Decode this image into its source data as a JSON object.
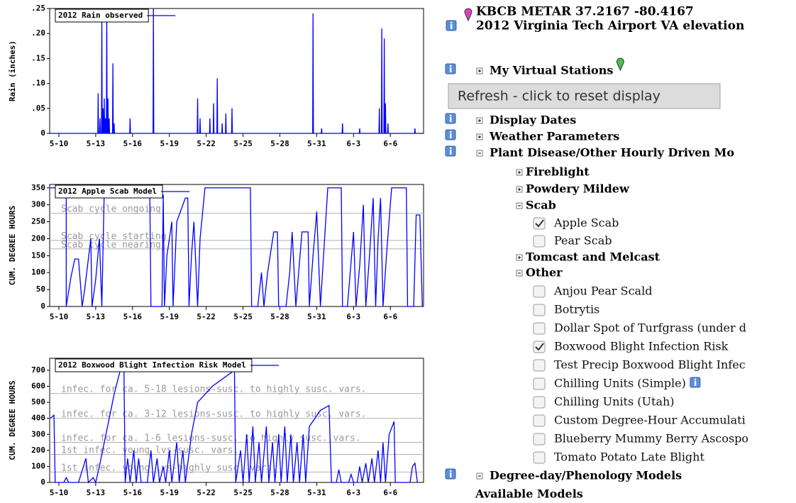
{
  "chart_data": [
    {
      "type": "line",
      "ylabel": "Rain (inches)",
      "legend": "upper left",
      "xlim": [
        9.25,
        39.7
      ],
      "xticks": [
        {
          "value": 10,
          "label": "5-10"
        },
        {
          "value": 13,
          "label": "5-13"
        },
        {
          "value": 16,
          "label": "5-16"
        },
        {
          "value": 19,
          "label": "5-19"
        },
        {
          "value": 22,
          "label": "5-22"
        },
        {
          "value": 25,
          "label": "5-25"
        },
        {
          "value": 28,
          "label": "5-28"
        },
        {
          "value": 31,
          "label": "5-31"
        },
        {
          "value": 34,
          "label": "6-3"
        },
        {
          "value": 37,
          "label": "6-6"
        }
      ],
      "ylim": [
        0,
        0.25
      ],
      "yticks": [
        0,
        {
          "value": 0.05,
          "label": ".05"
        },
        {
          "value": 0.1,
          "label": ".10"
        },
        {
          "value": 0.15,
          "label": ".15"
        },
        {
          "value": 0.2,
          "label": ".20"
        },
        {
          "value": 0.25,
          "label": ".25"
        }
      ],
      "x": [
        9.25,
        13.17,
        13.2,
        13.23,
        13.32,
        13.35,
        13.38,
        13.47,
        13.5,
        13.53,
        13.57,
        13.6,
        13.63,
        13.67,
        13.7,
        13.73,
        13.77,
        13.8,
        13.83,
        13.87,
        13.9,
        13.93,
        13.97,
        14.0,
        14.03,
        14.07,
        14.1,
        14.13,
        14.37,
        14.4,
        14.43,
        14.47,
        14.5,
        14.53,
        15.77,
        15.8,
        15.83,
        17.67,
        17.7,
        17.73,
        21.27,
        21.3,
        21.33,
        21.47,
        21.5,
        21.53,
        22.27,
        22.3,
        22.33,
        22.57,
        22.6,
        22.63,
        22.87,
        22.9,
        22.93,
        23.27,
        23.3,
        23.33,
        23.57,
        23.6,
        23.63,
        24.07,
        24.1,
        24.13,
        30.67,
        30.7,
        30.73,
        31.37,
        31.4,
        31.43,
        33.07,
        33.1,
        33.13,
        34.47,
        34.5,
        34.53,
        36.07,
        36.1,
        36.13,
        36.27,
        36.3,
        36.33,
        36.47,
        36.5,
        36.53,
        36.57,
        36.6,
        36.63,
        36.77,
        36.8,
        36.83,
        38.97,
        39.0,
        39.03,
        39.7
      ],
      "series": [
        {
          "name": "2012 Rain observed",
          "color": "#0000ff",
          "values": [
            0,
            0,
            0.08,
            0,
            0,
            0.03,
            0,
            0,
            0.24,
            0,
            0,
            0.05,
            0,
            0,
            0.07,
            0,
            0,
            0.03,
            0,
            0,
            0.25,
            0,
            0,
            0.07,
            0,
            0,
            0.03,
            0,
            0,
            0.14,
            0,
            0,
            0.02,
            0,
            0,
            0.03,
            0,
            0,
            0.25,
            0,
            0,
            0.07,
            0,
            0,
            0.03,
            0,
            0,
            0.03,
            0,
            0,
            0.06,
            0,
            0,
            0.11,
            0,
            0,
            0.02,
            0,
            0,
            0.04,
            0,
            0,
            0.05,
            0,
            0,
            0.24,
            0,
            0,
            0.01,
            0,
            0,
            0.02,
            0,
            0,
            0.01,
            0,
            0,
            0.05,
            0,
            0,
            0.21,
            0,
            0,
            0.19,
            0,
            0,
            0.06,
            0,
            0,
            0.02,
            0,
            0,
            0.01,
            0,
            0
          ]
        }
      ]
    },
    {
      "type": "line",
      "ylabel": "CUM. DEGREE HOURS",
      "legend": "upper left",
      "xlim": [
        9.25,
        39.7
      ],
      "xticks": [
        {
          "value": 10,
          "label": "5-10"
        },
        {
          "value": 13,
          "label": "5-13"
        },
        {
          "value": 16,
          "label": "5-16"
        },
        {
          "value": 19,
          "label": "5-19"
        },
        {
          "value": 22,
          "label": "5-22"
        },
        {
          "value": 25,
          "label": "5-25"
        },
        {
          "value": 28,
          "label": "5-28"
        },
        {
          "value": 31,
          "label": "5-31"
        },
        {
          "value": 34,
          "label": "6-3"
        },
        {
          "value": 37,
          "label": "6-6"
        }
      ],
      "ylim": [
        0,
        360
      ],
      "yticks": [
        0,
        50,
        100,
        150,
        200,
        250,
        300,
        350
      ],
      "annotations": [
        {
          "text": "Scab cycle ongoing",
          "value": 275
        },
        {
          "text": "Scab cycle starting",
          "value": 195
        },
        {
          "text": "Scab cycle nearing",
          "value": 170
        }
      ],
      "x": [
        9.3,
        10.6,
        10.6,
        11.0,
        11.3,
        11.6,
        11.9,
        12.1,
        12.6,
        12.7,
        13.0,
        13.3,
        13.5,
        13.7,
        17.4,
        17.5,
        18.4,
        18.5,
        18.6,
        18.8,
        19.2,
        19.3,
        19.6,
        20.3,
        20.5,
        20.6,
        20.8,
        21.0,
        21.3,
        21.5,
        21.9,
        25.6,
        25.7,
        26.2,
        26.5,
        26.7,
        27.0,
        27.5,
        27.8,
        27.9,
        28.5,
        28.8,
        29.0,
        29.3,
        29.8,
        30.3,
        30.4,
        30.7,
        31.0,
        31.3,
        31.9,
        33.0,
        33.1,
        33.5,
        34.0,
        34.2,
        34.5,
        34.8,
        35.0,
        35.3,
        35.6,
        35.8,
        36.0,
        36.2,
        36.4,
        36.7,
        37.1,
        38.3,
        38.4,
        38.9,
        39.1,
        39.4,
        39.6
      ],
      "series": [
        {
          "name": "2012 Apple Scab Model",
          "color": "#0000ff",
          "values": [
            350,
            350,
            0,
            90,
            140,
            140,
            0,
            50,
            200,
            0,
            80,
            200,
            0,
            350,
            350,
            0,
            0,
            330,
            0,
            150,
            250,
            0,
            250,
            320,
            320,
            0,
            150,
            250,
            0,
            200,
            350,
            350,
            0,
            0,
            100,
            0,
            100,
            220,
            220,
            0,
            0,
            100,
            220,
            0,
            220,
            220,
            0,
            150,
            280,
            0,
            350,
            350,
            0,
            0,
            220,
            0,
            120,
            300,
            0,
            150,
            320,
            0,
            200,
            320,
            0,
            160,
            350,
            350,
            0,
            0,
            270,
            270,
            0
          ]
        }
      ]
    },
    {
      "type": "line",
      "ylabel": "CUM. DEGREE HOURS",
      "legend": "upper left",
      "xlim": [
        9.25,
        39.7
      ],
      "xticks": [
        {
          "value": 10,
          "label": "5-10"
        },
        {
          "value": 13,
          "label": "5-13"
        },
        {
          "value": 16,
          "label": "5-16"
        },
        {
          "value": 19,
          "label": "5-19"
        },
        {
          "value": 22,
          "label": "5-22"
        },
        {
          "value": 25,
          "label": "5-25"
        },
        {
          "value": 28,
          "label": "5-28"
        },
        {
          "value": 31,
          "label": "5-31"
        },
        {
          "value": 34,
          "label": "6-3"
        },
        {
          "value": 37,
          "label": "6-6"
        }
      ],
      "ylim": [
        0,
        775
      ],
      "yticks": [
        0,
        100,
        200,
        300,
        400,
        500,
        600,
        700
      ],
      "annotations": [
        {
          "text": "infec. for ca. 5-18 lesions-susc. to highly susc. vars.",
          "value": 555
        },
        {
          "text": "infec. for ca. 3-12 lesions-susc. to highly susc. vars.",
          "value": 400
        },
        {
          "text": "infec. for ca. 1-6 lesions-susc. to highly susc. vars.",
          "value": 250
        },
        {
          "text": "1st infec. young lvs-susc. vars.",
          "value": 175
        },
        {
          "text": "1st infec. young lvs-highly susc. vars.",
          "value": 65
        }
      ],
      "x": [
        9.3,
        9.6,
        9.7,
        10.4,
        10.6,
        10.8,
        11.6,
        11.8,
        12.2,
        12.4,
        12.8,
        13.0,
        13.3,
        14.5,
        15.0,
        15.3,
        15.4,
        15.6,
        15.8,
        16.1,
        16.3,
        16.5,
        16.7,
        17.2,
        17.5,
        17.7,
        18.0,
        18.2,
        18.5,
        18.7,
        19.0,
        19.2,
        19.6,
        19.8,
        20.1,
        20.3,
        20.8,
        21.3,
        22.5,
        24.3,
        24.4,
        24.8,
        25.0,
        25.3,
        25.5,
        25.8,
        26.0,
        26.3,
        26.5,
        26.9,
        27.1,
        27.4,
        27.6,
        27.9,
        28.1,
        28.4,
        28.6,
        28.9,
        29.1,
        29.4,
        29.6,
        29.9,
        30.1,
        30.4,
        31.3,
        32.0,
        32.2,
        32.6,
        32.8,
        33.0,
        33.6,
        33.8,
        34.0,
        34.3,
        34.5,
        34.7,
        35.0,
        35.2,
        35.5,
        35.7,
        36.0,
        36.2,
        36.4,
        36.6,
        36.9,
        37.3,
        37.4,
        38.6,
        38.8,
        39.0,
        39.2
      ],
      "series": [
        {
          "name": "2012 Boxwood Blight Infection Risk Model",
          "color": "#0000ff",
          "values": [
            400,
            420,
            0,
            0,
            30,
            0,
            0,
            50,
            150,
            0,
            30,
            0,
            100,
            550,
            700,
            700,
            0,
            150,
            0,
            200,
            0,
            150,
            0,
            0,
            200,
            0,
            150,
            0,
            100,
            0,
            200,
            0,
            250,
            0,
            200,
            0,
            300,
            500,
            600,
            700,
            0,
            200,
            0,
            300,
            0,
            350,
            0,
            250,
            0,
            350,
            0,
            250,
            0,
            300,
            0,
            350,
            0,
            300,
            0,
            250,
            0,
            300,
            0,
            350,
            450,
            480,
            0,
            0,
            80,
            0,
            0,
            50,
            0,
            0,
            100,
            0,
            120,
            0,
            150,
            0,
            200,
            0,
            250,
            0,
            300,
            380,
            0,
            0,
            100,
            120,
            0
          ]
        }
      ]
    }
  ],
  "panel": {
    "header": {
      "line1": "KBCB   METAR   37.2167 -80.4167",
      "line2": "2012 Virginia Tech Airport VA elevation"
    },
    "button": "Refresh - click to reset display",
    "tree": [
      {
        "label": "My Virtual Stations",
        "kind": "folder",
        "level": 0,
        "open": false,
        "info": true,
        "pin": true
      },
      {
        "label": "Display Dates",
        "kind": "folder",
        "level": 0,
        "open": false,
        "info": true
      },
      {
        "label": "Weather Parameters",
        "kind": "folder",
        "level": 0,
        "open": false,
        "info": true
      },
      {
        "label": "Plant Disease/Other Hourly Driven Mo",
        "kind": "folder",
        "level": 0,
        "open": true,
        "info": true
      },
      {
        "label": "Fireblight",
        "kind": "folder",
        "level": 1,
        "open": false
      },
      {
        "label": "Powdery Mildew",
        "kind": "folder",
        "level": 1,
        "open": false
      },
      {
        "label": "Scab",
        "kind": "folder",
        "level": 1,
        "open": true
      },
      {
        "label": "Apple Scab",
        "kind": "check",
        "checked": true
      },
      {
        "label": "Pear Scab",
        "kind": "check",
        "checked": false
      },
      {
        "label": "Tomcast and Melcast",
        "kind": "folder",
        "level": 1,
        "open": false
      },
      {
        "label": "Other",
        "kind": "folder",
        "level": 1,
        "open": true
      },
      {
        "label": "Anjou Pear Scald",
        "kind": "check",
        "checked": false
      },
      {
        "label": "Botrytis",
        "kind": "check",
        "checked": false
      },
      {
        "label": "Dollar Spot of Turfgrass (under d",
        "kind": "check",
        "checked": false
      },
      {
        "label": "Boxwood Blight Infection Risk",
        "kind": "check",
        "checked": true
      },
      {
        "label": "Test Precip Boxwood Blight Infec",
        "kind": "check",
        "checked": false
      },
      {
        "label": "Chilling Units (Simple)",
        "kind": "check",
        "checked": false,
        "info": true
      },
      {
        "label": "Chilling Units (Utah)",
        "kind": "check",
        "checked": false
      },
      {
        "label": "Custom Degree-Hour Accumulati",
        "kind": "check",
        "checked": false
      },
      {
        "label": "Blueberry Mummy Berry Ascospo",
        "kind": "check",
        "checked": false
      },
      {
        "label": "Tomato Potato Late Blight",
        "kind": "check",
        "checked": false
      },
      {
        "label": "Degree-day/Phenology Models",
        "kind": "folder",
        "level": 0,
        "open": true,
        "info": true
      },
      {
        "label": "Available Models",
        "kind": "text"
      }
    ]
  }
}
